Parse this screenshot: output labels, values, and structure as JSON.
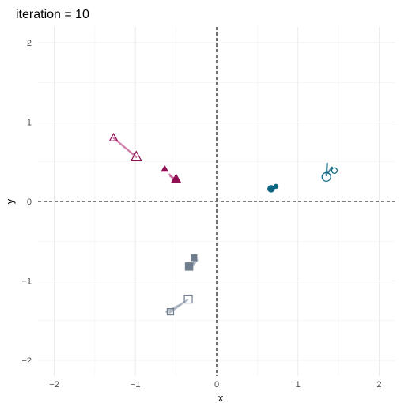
{
  "chart_data": {
    "type": "scatter",
    "title": "iteration = 10",
    "xlabel": "x",
    "ylabel": "y",
    "xlim": [
      -2.2,
      2.2
    ],
    "ylim": [
      -2.2,
      2.2
    ],
    "xticks": [
      -2,
      -1,
      0,
      1,
      2
    ],
    "yticks": [
      -2,
      -1,
      0,
      1,
      2
    ],
    "grid": true,
    "legend": "none",
    "reference_lines": {
      "x": 0,
      "y": 0,
      "style": "dashed"
    },
    "colors": {
      "teal": "#0b6583",
      "maroon": "#8e0f52",
      "pink": "#c2578f",
      "slate": "#6f7d8e",
      "lightslate": "#9aa6b4"
    },
    "groups": [
      {
        "color": "teal",
        "shape": "circle",
        "open": false,
        "size": 9,
        "x": 0.67,
        "y": 0.16
      },
      {
        "color": "teal",
        "shape": "circle",
        "open": false,
        "size": 6,
        "x": 0.73,
        "y": 0.19
      },
      {
        "color": "teal",
        "shape": "circle",
        "open": true,
        "size": 11,
        "x": 1.35,
        "y": 0.31
      },
      {
        "color": "teal",
        "shape": "circle",
        "open": true,
        "size": 7,
        "x": 1.45,
        "y": 0.39
      },
      {
        "color": "maroon",
        "shape": "triangle",
        "open": false,
        "size": 9,
        "x": -0.64,
        "y": 0.41
      },
      {
        "color": "maroon",
        "shape": "triangle",
        "open": false,
        "size": 13,
        "x": -0.5,
        "y": 0.28
      },
      {
        "color": "maroon",
        "shape": "triangle",
        "open": true,
        "size": 10,
        "x": -1.27,
        "y": 0.8
      },
      {
        "color": "maroon",
        "shape": "triangle",
        "open": true,
        "size": 13,
        "x": -0.99,
        "y": 0.56
      },
      {
        "color": "slate",
        "shape": "square",
        "open": false,
        "size": 10,
        "x": -0.34,
        "y": -0.82
      },
      {
        "color": "slate",
        "shape": "square",
        "open": false,
        "size": 8,
        "x": -0.28,
        "y": -0.71
      },
      {
        "color": "slate",
        "shape": "square",
        "open": true,
        "size": 10,
        "x": -0.35,
        "y": -1.23
      },
      {
        "color": "slate",
        "shape": "square",
        "open": true,
        "size": 8,
        "x": -0.57,
        "y": -1.39
      }
    ],
    "trails": [
      {
        "color": "pink",
        "x": [
          -1.27,
          -0.99
        ],
        "y": [
          0.8,
          0.56
        ]
      },
      {
        "color": "pink",
        "x": [
          -0.57,
          -0.52
        ],
        "y": [
          0.32,
          0.29
        ]
      },
      {
        "color": "pink",
        "x": [
          -0.58,
          -0.52
        ],
        "y": [
          0.34,
          0.27
        ]
      },
      {
        "color": "teal",
        "x": [
          1.35,
          1.36
        ],
        "y": [
          0.33,
          0.48
        ]
      },
      {
        "color": "teal",
        "x": [
          1.37,
          1.42
        ],
        "y": [
          0.36,
          0.43
        ]
      },
      {
        "color": "teal",
        "x": [
          0.68,
          0.72
        ],
        "y": [
          0.15,
          0.18
        ]
      },
      {
        "color": "lightslate",
        "x": [
          -0.58,
          -0.36
        ],
        "y": [
          -1.4,
          -1.24
        ]
      },
      {
        "color": "lightslate",
        "x": [
          -0.62,
          -0.45
        ],
        "y": [
          -1.39,
          -1.3
        ]
      },
      {
        "color": "lightslate",
        "x": [
          -0.3,
          -0.26
        ],
        "y": [
          -0.8,
          -0.72
        ]
      },
      {
        "color": "lightslate",
        "x": [
          -0.28,
          -0.24
        ],
        "y": [
          -0.79,
          -0.74
        ]
      }
    ]
  }
}
